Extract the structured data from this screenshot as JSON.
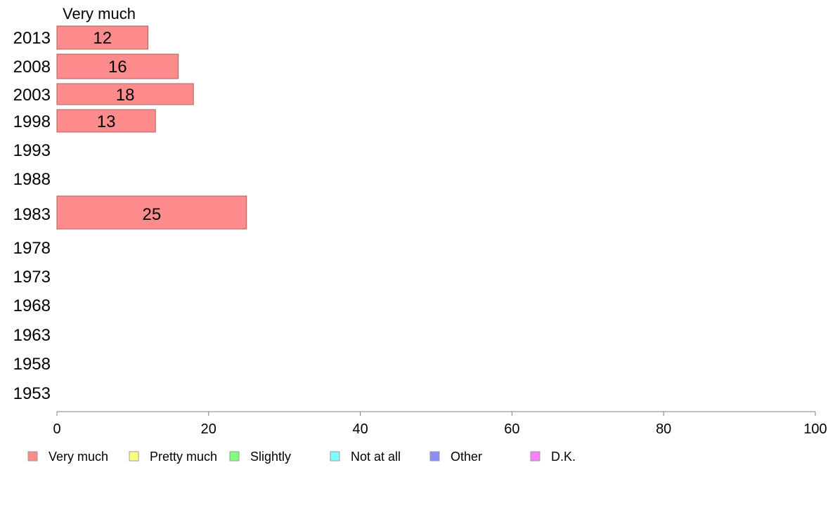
{
  "chart_data": {
    "type": "bar",
    "orientation": "horizontal",
    "series_header": "Very much",
    "categories": [
      "2013",
      "2008",
      "2003",
      "1998",
      "1993",
      "1988",
      "1983",
      "1978",
      "1973",
      "1968",
      "1963",
      "1958",
      "1953"
    ],
    "series": [
      {
        "name": "Very much",
        "color": "#ff8c8c",
        "values": [
          12,
          16,
          18,
          13,
          null,
          null,
          25,
          null,
          null,
          null,
          null,
          null,
          null
        ]
      }
    ],
    "xlim": [
      0,
      100
    ],
    "xticks": [
      0,
      20,
      40,
      60,
      80,
      100
    ],
    "legend": {
      "placement": "bottom",
      "items": [
        {
          "label": "Very much",
          "color": "#ff8c8c"
        },
        {
          "label": "Pretty much",
          "color": "#ffff80"
        },
        {
          "label": "Slightly",
          "color": "#80ff80"
        },
        {
          "label": "Not at all",
          "color": "#80ffff"
        },
        {
          "label": "Other",
          "color": "#8c8cff"
        },
        {
          "label": "D.K.",
          "color": "#ff80ff"
        }
      ]
    },
    "grid": false
  }
}
